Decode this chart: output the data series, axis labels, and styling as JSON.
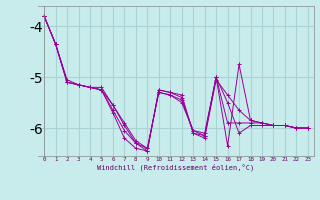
{
  "xlabel": "Windchill (Refroidissement éolien,°C)",
  "background_color": "#c8ecec",
  "grid_color": "#aad4d4",
  "line_color": "#990099",
  "x_values": [
    0,
    1,
    2,
    3,
    4,
    5,
    6,
    7,
    8,
    9,
    10,
    11,
    12,
    13,
    14,
    15,
    16,
    17,
    18,
    19,
    20,
    21,
    22,
    23
  ],
  "series": [
    [
      -3.8,
      -4.35,
      -5.1,
      -5.15,
      -5.2,
      -5.25,
      -5.7,
      -6.2,
      -6.4,
      -6.45,
      -5.25,
      -5.3,
      -5.35,
      -6.1,
      -6.2,
      -5.05,
      -5.35,
      -5.65,
      -5.85,
      -5.9,
      -5.95,
      -5.95,
      -6.0,
      -6.0
    ],
    [
      -3.8,
      -4.35,
      -5.1,
      -5.15,
      -5.2,
      -5.25,
      -5.65,
      -6.05,
      -6.3,
      -6.45,
      -5.25,
      -5.3,
      -5.4,
      -6.1,
      -6.15,
      -5.0,
      -6.35,
      -4.75,
      -5.85,
      -5.9,
      -5.95,
      -5.95,
      -6.0,
      -6.0
    ],
    [
      -3.8,
      -4.35,
      -5.05,
      -5.15,
      -5.2,
      -5.2,
      -5.55,
      -5.95,
      -6.3,
      -6.4,
      -5.3,
      -5.35,
      -5.45,
      -6.05,
      -6.15,
      -5.0,
      -5.9,
      -5.9,
      -5.9,
      -5.9,
      -5.95,
      -5.95,
      -6.0,
      -6.0
    ],
    [
      -3.8,
      -4.35,
      -5.1,
      -5.15,
      -5.2,
      -5.25,
      -5.55,
      -5.9,
      -6.25,
      -6.4,
      -5.3,
      -5.35,
      -5.5,
      -6.05,
      -6.1,
      -5.0,
      -5.5,
      -6.1,
      -5.95,
      -5.95,
      -5.95,
      -5.95,
      -6.0,
      -6.0
    ]
  ],
  "ylim": [
    -6.55,
    -3.6
  ],
  "yticks": [
    -6,
    -5,
    -4
  ],
  "xlim": [
    -0.5,
    23.5
  ]
}
